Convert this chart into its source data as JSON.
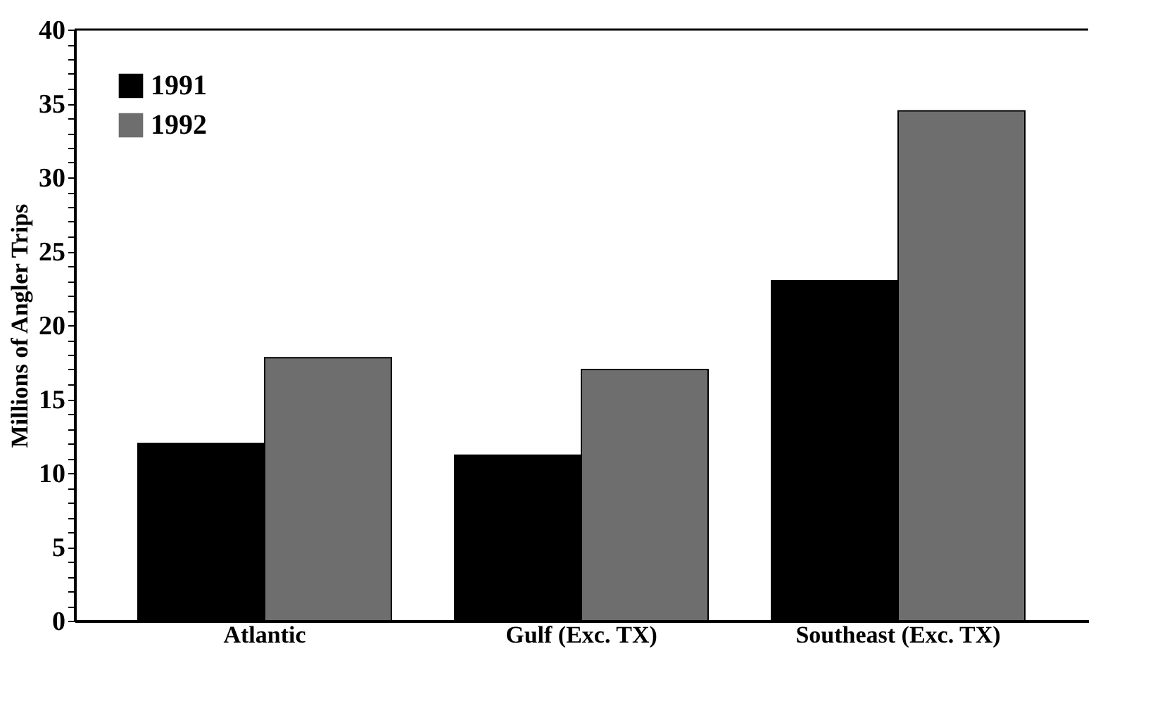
{
  "chart_data": {
    "type": "bar",
    "ylabel": "Millions of Angler Trips",
    "categories": [
      "Atlantic",
      "Gulf (Exc. TX)",
      "Southeast (Exc. TX)"
    ],
    "series": [
      {
        "name": "1991",
        "color": "#000000",
        "values": [
          12.0,
          11.2,
          23.0
        ]
      },
      {
        "name": "1992",
        "color": "#6e6e6e",
        "values": [
          17.8,
          17.0,
          34.5
        ]
      }
    ],
    "ylim": [
      0,
      40
    ],
    "yticks": [
      0,
      {
        "value": 1,
        "label": null
      },
      {
        "value": 2,
        "label": null
      },
      {
        "value": 3,
        "label": null
      },
      {
        "value": 4,
        "label": null
      },
      5,
      {
        "value": 6,
        "label": null
      },
      {
        "value": 7,
        "label": null
      },
      {
        "value": 8,
        "label": null
      },
      {
        "value": 9,
        "label": null
      },
      10,
      {
        "value": 11,
        "label": null
      },
      {
        "value": 12,
        "label": null
      },
      {
        "value": 13,
        "label": null
      },
      {
        "value": 14,
        "label": null
      },
      15,
      {
        "value": 16,
        "label": null
      },
      {
        "value": 17,
        "label": null
      },
      {
        "value": 18,
        "label": null
      },
      {
        "value": 19,
        "label": null
      },
      20,
      {
        "value": 21,
        "label": null
      },
      {
        "value": 22,
        "label": null
      },
      {
        "value": 23,
        "label": null
      },
      {
        "value": 24,
        "label": null
      },
      25,
      {
        "value": 26,
        "label": null
      },
      {
        "value": 27,
        "label": null
      },
      {
        "value": 28,
        "label": null
      },
      {
        "value": 29,
        "label": null
      },
      30,
      {
        "value": 31,
        "label": null
      },
      {
        "value": 32,
        "label": null
      },
      {
        "value": 33,
        "label": null
      },
      {
        "value": 34,
        "label": null
      },
      35,
      {
        "value": 36,
        "label": null
      },
      {
        "value": 37,
        "label": null
      },
      {
        "value": 38,
        "label": null
      },
      {
        "value": 39,
        "label": null
      },
      40
    ],
    "grid": false,
    "legend": "top left"
  }
}
